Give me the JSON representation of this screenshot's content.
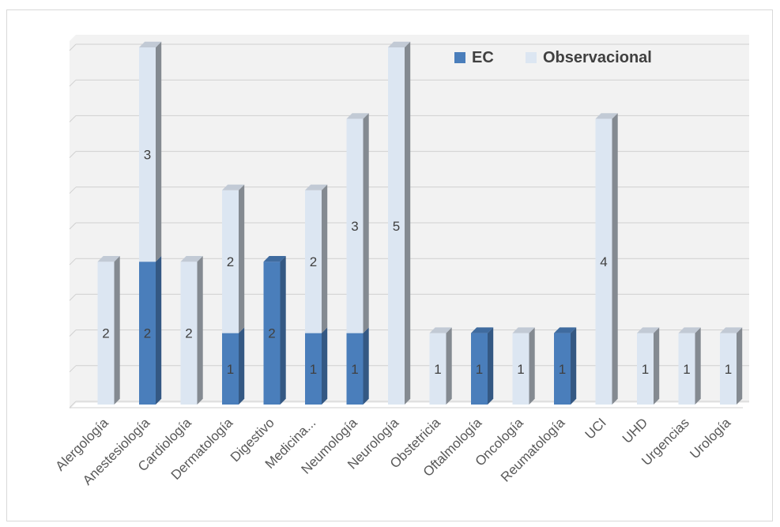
{
  "chart_data": {
    "type": "bar",
    "stacked": true,
    "three_d": true,
    "categories": [
      "Alergología",
      "Anestesiología",
      "Cardiología",
      "Dermatología",
      "Digestivo",
      "Medicina...",
      "Neumología",
      "Neurología",
      "Obstetricia",
      "Oftalmología",
      "Oncología",
      "Reumatología",
      "UCI",
      "UHD",
      "Urgencias",
      "Urología"
    ],
    "series": [
      {
        "name": "EC",
        "color": "#4a7ebb",
        "values": [
          0,
          2,
          0,
          1,
          2,
          1,
          1,
          0,
          0,
          1,
          0,
          1,
          0,
          0,
          0,
          0
        ]
      },
      {
        "name": "Observacional",
        "color": "#dce6f2",
        "values": [
          2,
          3,
          2,
          2,
          0,
          2,
          3,
          5,
          1,
          0,
          1,
          0,
          4,
          1,
          1,
          1
        ]
      }
    ],
    "ylim": [
      0,
      5
    ],
    "y_tick_labels_shown": false,
    "grid": true,
    "legend": "top-right",
    "background": "#f2f2f2"
  }
}
